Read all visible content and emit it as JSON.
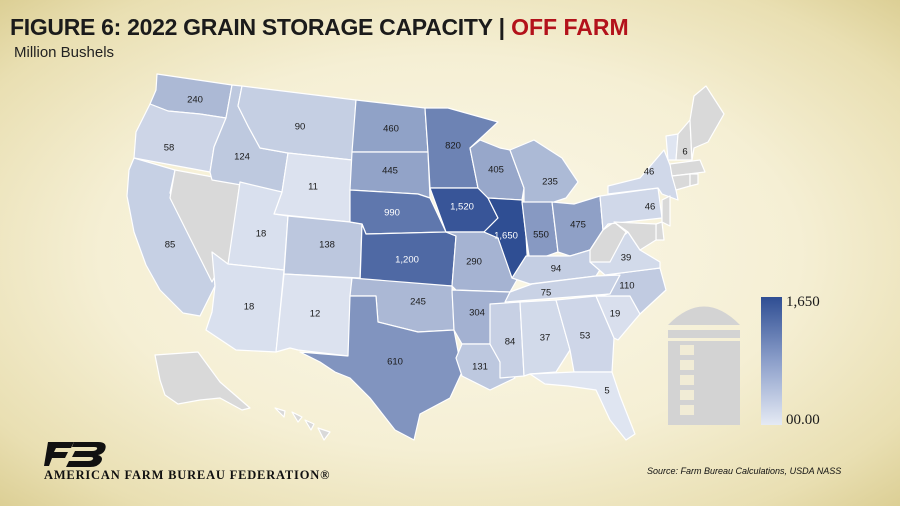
{
  "title": {
    "main": "FIGURE 6: 2022 GRAIN STORAGE CAPACITY",
    "separator": "|",
    "accent": "OFF FARM"
  },
  "subtitle": "Million Bushels",
  "legend": {
    "max_label": "1,650",
    "min_label": "00.00",
    "max_color": "#2f4e93",
    "min_color": "#e5eaf4"
  },
  "no_data_color": "#d9d9d9",
  "org_name": "AMERICAN FARM BUREAU FEDERATION®",
  "source": "Source: Farm Bureau Calculations, USDA NASS",
  "states": [
    {
      "id": "WA",
      "value": 240,
      "label": "240"
    },
    {
      "id": "OR",
      "value": 58,
      "label": "58"
    },
    {
      "id": "CA",
      "value": 85,
      "label": "85"
    },
    {
      "id": "NV",
      "value": null,
      "label": ""
    },
    {
      "id": "ID",
      "value": 124,
      "label": "124"
    },
    {
      "id": "MT",
      "value": 90,
      "label": "90"
    },
    {
      "id": "WY",
      "value": 11,
      "label": "11"
    },
    {
      "id": "UT",
      "value": 18,
      "label": "18"
    },
    {
      "id": "AZ",
      "value": 18,
      "label": "18"
    },
    {
      "id": "CO",
      "value": 138,
      "label": "138"
    },
    {
      "id": "NM",
      "value": 12,
      "label": "12"
    },
    {
      "id": "ND",
      "value": 460,
      "label": "460"
    },
    {
      "id": "SD",
      "value": 445,
      "label": "445"
    },
    {
      "id": "NE",
      "value": 990,
      "label": "990"
    },
    {
      "id": "KS",
      "value": 1200,
      "label": "1,200"
    },
    {
      "id": "OK",
      "value": 245,
      "label": "245"
    },
    {
      "id": "TX",
      "value": 610,
      "label": "610"
    },
    {
      "id": "MN",
      "value": 820,
      "label": "820"
    },
    {
      "id": "IA",
      "value": 1520,
      "label": "1,520"
    },
    {
      "id": "MO",
      "value": 290,
      "label": "290"
    },
    {
      "id": "AR",
      "value": 304,
      "label": "304"
    },
    {
      "id": "LA",
      "value": 131,
      "label": "131"
    },
    {
      "id": "WI",
      "value": 405,
      "label": "405"
    },
    {
      "id": "IL",
      "value": 1650,
      "label": "1,650"
    },
    {
      "id": "MI",
      "value": 235,
      "label": "235"
    },
    {
      "id": "IN",
      "value": 550,
      "label": "550"
    },
    {
      "id": "OH",
      "value": 475,
      "label": "475"
    },
    {
      "id": "KY",
      "value": 94,
      "label": "94"
    },
    {
      "id": "TN",
      "value": 75,
      "label": "75"
    },
    {
      "id": "MS",
      "value": 84,
      "label": "84"
    },
    {
      "id": "AL",
      "value": 37,
      "label": "37"
    },
    {
      "id": "GA",
      "value": 53,
      "label": "53"
    },
    {
      "id": "FL",
      "value": 5,
      "label": "5"
    },
    {
      "id": "SC",
      "value": 19,
      "label": "19"
    },
    {
      "id": "NC",
      "value": 110,
      "label": "110"
    },
    {
      "id": "VA",
      "value": 39,
      "label": "39"
    },
    {
      "id": "WV",
      "value": null,
      "label": ""
    },
    {
      "id": "PA",
      "value": 46,
      "label": "46"
    },
    {
      "id": "NY",
      "value": 46,
      "label": "46"
    },
    {
      "id": "VT",
      "value": 6,
      "label": "6"
    },
    {
      "id": "NH",
      "value": null,
      "label": ""
    },
    {
      "id": "ME",
      "value": null,
      "label": ""
    },
    {
      "id": "MA",
      "value": null,
      "label": ""
    },
    {
      "id": "CT",
      "value": null,
      "label": ""
    },
    {
      "id": "RI",
      "value": null,
      "label": ""
    },
    {
      "id": "NJ",
      "value": null,
      "label": ""
    },
    {
      "id": "DE",
      "value": null,
      "label": ""
    },
    {
      "id": "MD",
      "value": null,
      "label": ""
    },
    {
      "id": "AK",
      "value": null,
      "label": ""
    },
    {
      "id": "HI",
      "value": null,
      "label": ""
    }
  ]
}
